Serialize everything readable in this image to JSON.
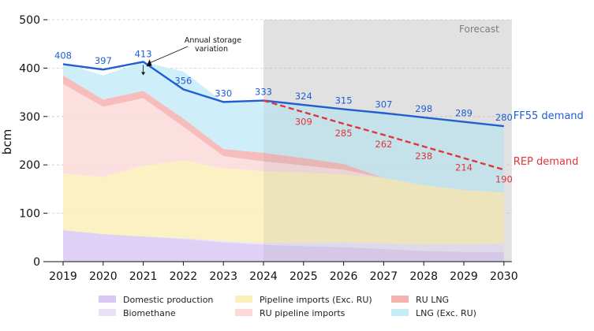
{
  "chart_data": {
    "type": "area",
    "title": "",
    "ylabel": "bcm",
    "xlabel": "",
    "x": [
      "2019",
      "2020",
      "2021",
      "2022",
      "2023",
      "2024",
      "2025",
      "2026",
      "2027",
      "2028",
      "2029",
      "2030"
    ],
    "ylim": [
      0,
      500
    ],
    "yticks": [
      0,
      100,
      200,
      300,
      400,
      500
    ],
    "grid": "horizontal dashed",
    "forecast_label": "Forecast",
    "forecast_start": "2024",
    "stacked_series": [
      {
        "name": "Domestic production",
        "color": "#d9c8f5",
        "values": [
          65,
          57,
          52,
          47,
          40,
          35,
          32,
          30,
          26,
          22,
          20,
          20
        ]
      },
      {
        "name": "Biomethane",
        "color": "#e9e1f7",
        "values": [
          0,
          0,
          0,
          2,
          3,
          4,
          7,
          10,
          12,
          14,
          16,
          18
        ]
      },
      {
        "name": "Pipeline imports (Exc. RU)",
        "color": "#fbeeb8",
        "values": [
          117,
          118,
          146,
          160,
          150,
          148,
          145,
          140,
          135,
          122,
          112,
          105
        ]
      },
      {
        "name": "RU pipeline imports",
        "color": "#fcd9d9",
        "values": [
          185,
          145,
          140,
          70,
          25,
          20,
          15,
          10,
          0,
          0,
          0,
          0
        ]
      },
      {
        "name": "RU LNG",
        "color": "#f6b1b1",
        "values": [
          18,
          15,
          15,
          17,
          15,
          18,
          15,
          12,
          0,
          0,
          0,
          0
        ]
      },
      {
        "name": "LNG (Exc. RU)",
        "color": "#c6ecf8",
        "values": [
          25,
          50,
          60,
          97,
          97,
          108,
          110,
          113,
          134,
          140,
          141,
          137
        ]
      }
    ],
    "series": [
      {
        "name": "FF55 demand",
        "color": "#1f5fd1",
        "style": "solid",
        "x": [
          "2019",
          "2020",
          "2021",
          "2022",
          "2023",
          "2024",
          "2025",
          "2026",
          "2027",
          "2028",
          "2029",
          "2030"
        ],
        "values": [
          408,
          397,
          413,
          356,
          330,
          333,
          324,
          315,
          307,
          298,
          289,
          280
        ],
        "labels": [
          "408",
          "397",
          "413",
          "356",
          "330",
          "333",
          "324",
          "315",
          "307",
          "298",
          "289",
          "280"
        ]
      },
      {
        "name": "REP demand",
        "color": "#e0353a",
        "style": "dashed",
        "x": [
          "2024",
          "2025",
          "2026",
          "2027",
          "2028",
          "2029",
          "2030"
        ],
        "values": [
          333,
          309,
          285,
          262,
          238,
          214,
          190
        ],
        "labels": [
          "",
          "309",
          "285",
          "262",
          "238",
          "214",
          "190"
        ]
      }
    ],
    "annotations": [
      {
        "text_lines": [
          "Annual storage",
          "variation"
        ],
        "x": "2021"
      }
    ],
    "legend": {
      "placement": "bottom",
      "columns": [
        [
          "Domestic production",
          "Biomethane"
        ],
        [
          "Pipeline imports (Exc. RU)",
          "RU pipeline imports"
        ],
        [
          "RU LNG",
          "LNG (Exc. RU)"
        ]
      ]
    }
  }
}
